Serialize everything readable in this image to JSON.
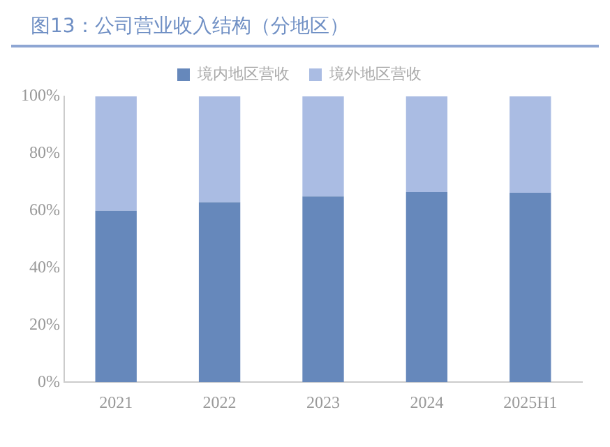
{
  "chart_data": {
    "type": "bar",
    "title": "图13：公司营业收入结构（分地区）",
    "categories": [
      "2021",
      "2022",
      "2023",
      "2024",
      "2025H1"
    ],
    "stacked": true,
    "series": [
      {
        "name": "境内地区营收",
        "color": "#6688bb",
        "values": [
          60,
          63,
          65,
          66.5,
          66.3
        ]
      },
      {
        "name": "境外地区营收",
        "color": "#aabce3",
        "values": [
          40,
          37,
          35,
          33.5,
          33.7
        ]
      }
    ],
    "ylim": [
      0,
      100
    ],
    "yticks": [
      {
        "value": 0,
        "label": "0%"
      },
      {
        "value": 20,
        "label": "20%"
      },
      {
        "value": 40,
        "label": "40%"
      },
      {
        "value": 60,
        "label": "60%"
      },
      {
        "value": 80,
        "label": "80%"
      },
      {
        "value": 100,
        "label": "100%"
      }
    ],
    "grid": false,
    "legend": "top"
  }
}
